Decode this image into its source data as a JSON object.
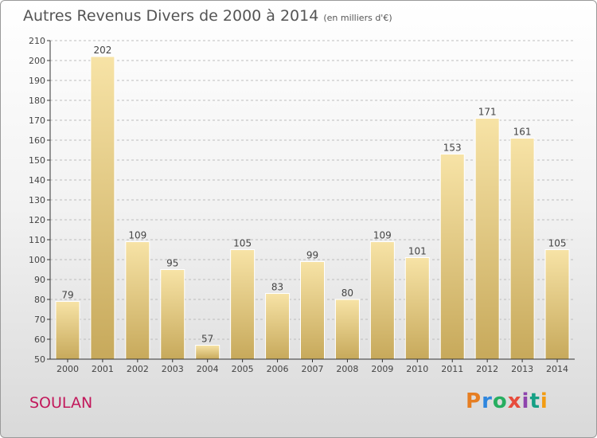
{
  "title": "Autres Revenus Divers de 2000 à 2014",
  "unit": "(en milliers d'€)",
  "place": "SOULAN",
  "logo": "Proxiti",
  "colors": {
    "bar_light": "#f5dfa0",
    "bar_dark": "#c9ab5d",
    "label": "#444444",
    "axis": "#333333",
    "grid": "#bdbdbd"
  },
  "chart_data": {
    "type": "bar",
    "categories": [
      "2000",
      "2001",
      "2002",
      "2003",
      "2004",
      "2005",
      "2006",
      "2007",
      "2008",
      "2009",
      "2010",
      "2011",
      "2012",
      "2013",
      "2014"
    ],
    "values": [
      79,
      202,
      109,
      95,
      57,
      105,
      83,
      99,
      80,
      109,
      101,
      153,
      171,
      161,
      105
    ],
    "ylim": [
      50,
      210
    ],
    "yticks": [
      50,
      60,
      70,
      80,
      90,
      100,
      110,
      120,
      130,
      140,
      150,
      160,
      170,
      180,
      190,
      200,
      210
    ],
    "grid": true,
    "data_labels": true
  }
}
